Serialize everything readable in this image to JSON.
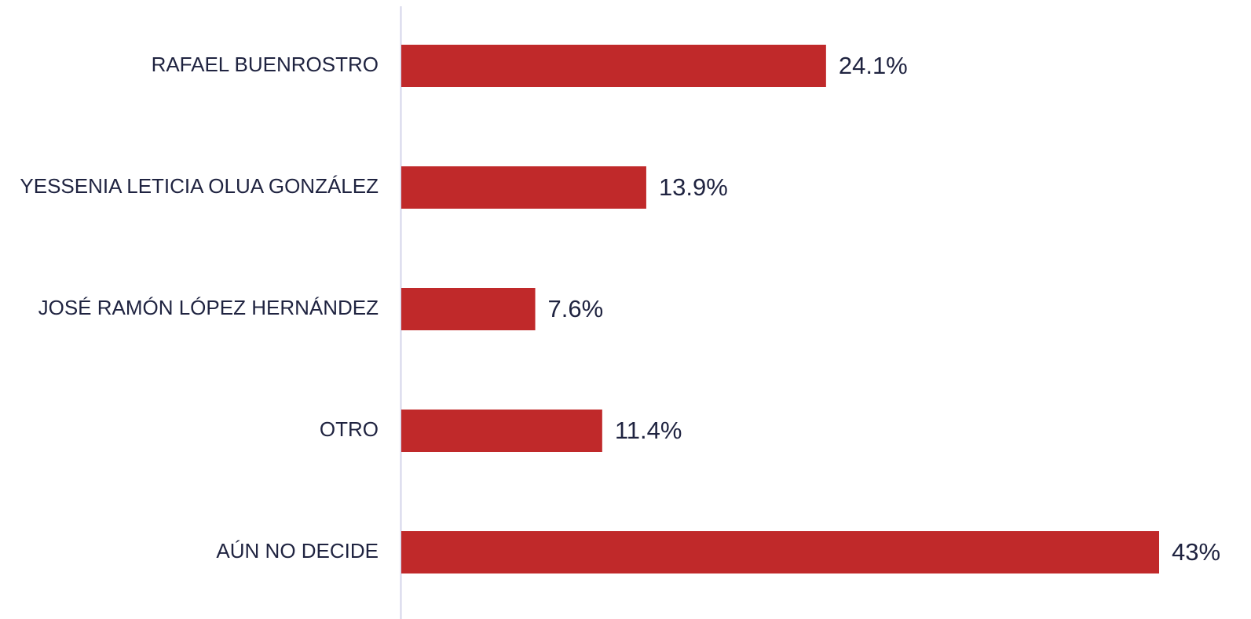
{
  "chart_data": {
    "type": "bar",
    "orientation": "horizontal",
    "categories": [
      "RAFAEL BUENROSTRO",
      "YESSENIA LETICIA OLUA GONZÁLEZ",
      "JOSÉ RAMÓN LÓPEZ HERNÁNDEZ",
      "OTRO",
      "AÚN NO DECIDE"
    ],
    "values": [
      24.1,
      13.9,
      7.6,
      11.4,
      43
    ],
    "value_labels": [
      "24.1%",
      "13.9%",
      "7.6%",
      "11.4%",
      "43%"
    ],
    "color": "#c0292a"
  }
}
